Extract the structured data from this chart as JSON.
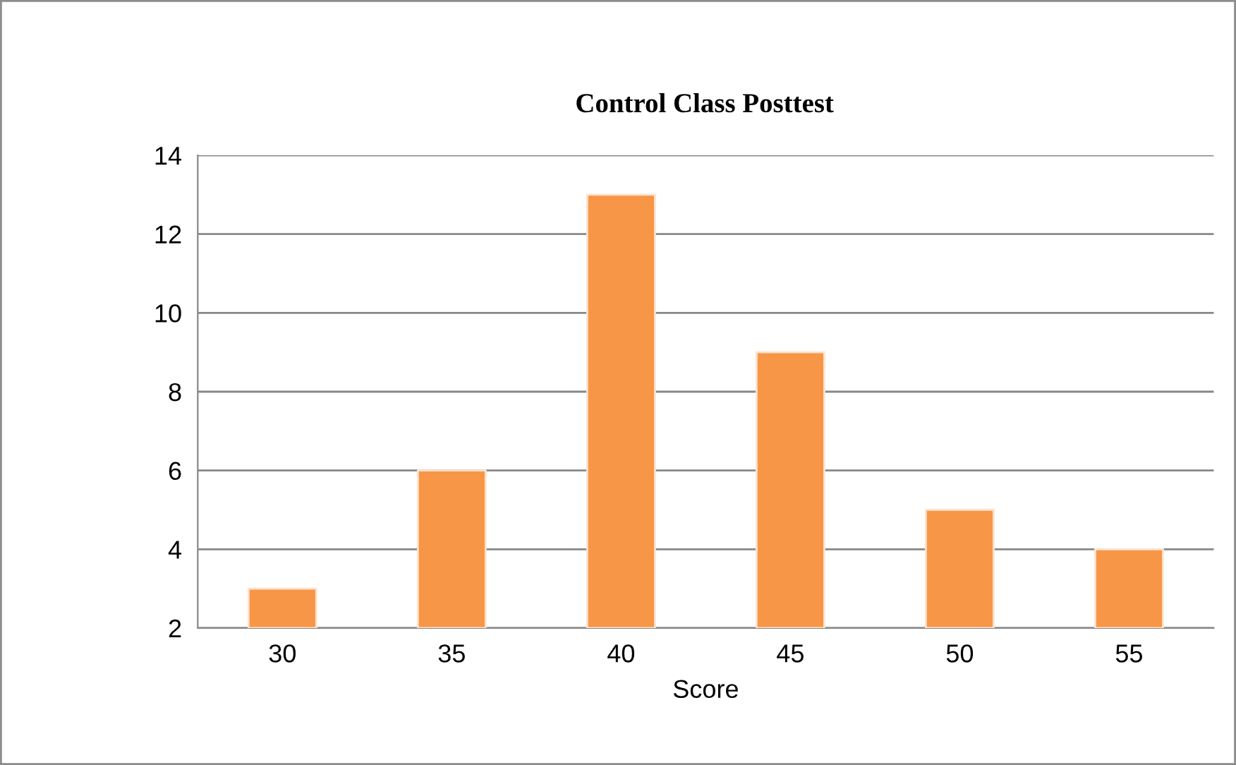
{
  "chart_data": {
    "type": "bar",
    "title": "Control Class Posttest",
    "xlabel": "Score",
    "categories": [
      "30",
      "35",
      "40",
      "45",
      "50",
      "55"
    ],
    "values": [
      3,
      6,
      13,
      9,
      5,
      4
    ],
    "color": "#f79646",
    "ylim": [
      2,
      14
    ],
    "yticks": [
      2,
      4,
      6,
      8,
      10,
      12,
      14
    ],
    "grid": "y",
    "legend": false
  }
}
